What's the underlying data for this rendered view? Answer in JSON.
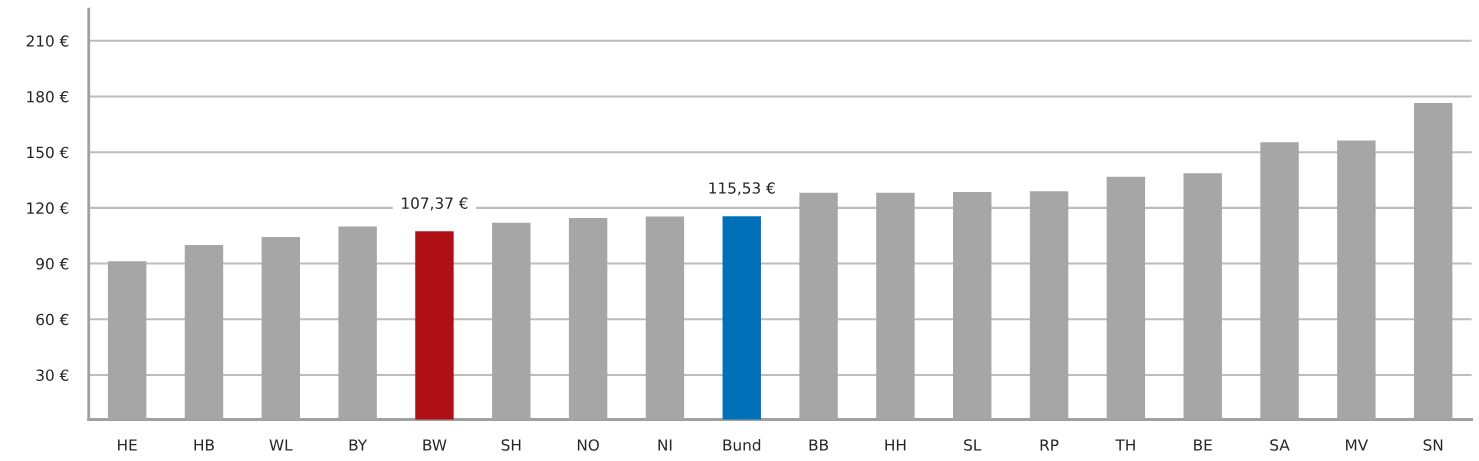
{
  "chart_data": {
    "type": "bar",
    "categories": [
      "HE",
      "HB",
      "WL",
      "BY",
      "BW",
      "SH",
      "NO",
      "NI",
      "Bund",
      "BB",
      "HH",
      "SL",
      "RP",
      "TH",
      "BE",
      "SA",
      "MV",
      "SN"
    ],
    "values": [
      91.3,
      100,
      104.3,
      110,
      107.37,
      112,
      114.5,
      115.3,
      115.53,
      128.1,
      128.1,
      128.6,
      129,
      136.8,
      138.6,
      155.4,
      156.3,
      176.5
    ],
    "colors": [
      "#a6a6a6",
      "#a6a6a6",
      "#a6a6a6",
      "#a6a6a6",
      "#b01015",
      "#a6a6a6",
      "#a6a6a6",
      "#a6a6a6",
      "#0070b8",
      "#a6a6a6",
      "#a6a6a6",
      "#a6a6a6",
      "#a6a6a6",
      "#a6a6a6",
      "#a6a6a6",
      "#a6a6a6",
      "#a6a6a6",
      "#a6a6a6"
    ],
    "value_labels": [
      null,
      null,
      null,
      null,
      "107,37 €",
      null,
      null,
      null,
      "115,53 €",
      null,
      null,
      null,
      null,
      null,
      null,
      null,
      null,
      null
    ],
    "ylim": [
      6,
      227
    ],
    "yticks": [
      {
        "value": 30,
        "label": "30 €"
      },
      {
        "value": 60,
        "label": "60 €"
      },
      {
        "value": 90,
        "label": "90 €"
      },
      {
        "value": 120,
        "label": "120 €"
      },
      {
        "value": 150,
        "label": "150 €"
      },
      {
        "value": 180,
        "label": "180 €"
      },
      {
        "value": 210,
        "label": "210 €"
      }
    ],
    "grid": "y"
  }
}
